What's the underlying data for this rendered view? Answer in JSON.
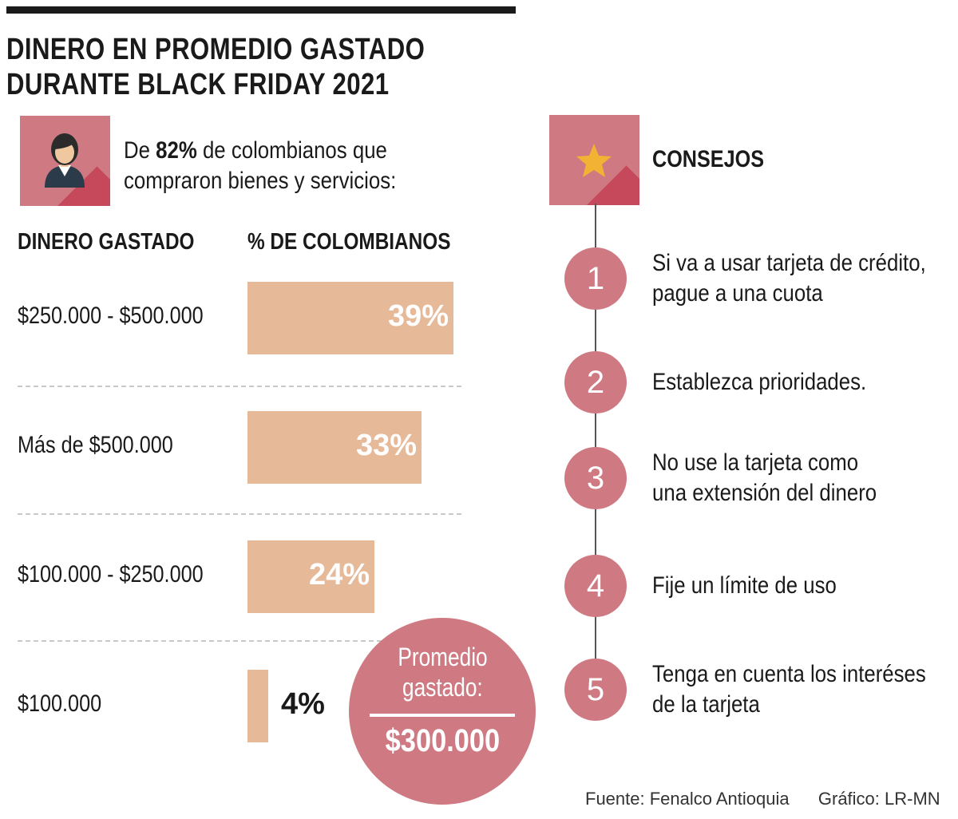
{
  "title_line1": "DINERO EN PROMEDIO GASTADO",
  "title_line2": "DURANTE BLACK FRIDAY 2021",
  "intro": {
    "pre": "De ",
    "highlight": "82%",
    "post": " de colombianos que",
    "line2": "compraron bienes y servicios:"
  },
  "icons": {
    "person": "person-icon",
    "star": "star-icon"
  },
  "colors": {
    "accent": "#cf7a82",
    "bar": "#e6b998",
    "shadow": "#c5495a",
    "star": "#f2b233"
  },
  "chart_data": {
    "type": "bar",
    "orientation": "horizontal",
    "xlabel": "DINERO GASTADO",
    "ylabel": "% DE COLOMBIANOS",
    "categories": [
      "$250.000 - $500.000",
      "Más de $500.000",
      "$100.000 - $250.000",
      "$100.000"
    ],
    "values": [
      39,
      33,
      24,
      4
    ],
    "value_labels": [
      "39%",
      "33%",
      "24%",
      "4%"
    ],
    "unit": "%"
  },
  "average": {
    "title_line1": "Promedio",
    "title_line2": "gastado:",
    "value": "$300.000"
  },
  "tips": {
    "title": "CONSEJOS",
    "items": [
      {
        "number": "1",
        "line1": "Si va a usar tarjeta de crédito,",
        "line2": "pague a una cuota"
      },
      {
        "number": "2",
        "line1": "Establezca prioridades.",
        "line2": ""
      },
      {
        "number": "3",
        "line1": "No use la tarjeta como",
        "line2": "una extensión del dinero"
      },
      {
        "number": "4",
        "line1": "Fije un límite de uso",
        "line2": ""
      },
      {
        "number": "5",
        "line1": "Tenga en cuenta los interéses",
        "line2": "de la tarjeta"
      }
    ]
  },
  "footer": {
    "source": "Fuente: Fenalco Antioquia",
    "credit": "Gráfico: LR-MN"
  }
}
